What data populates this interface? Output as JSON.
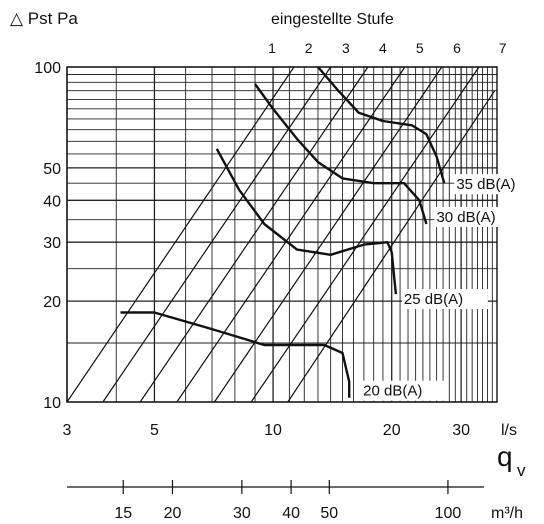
{
  "chart_data": {
    "type": "line",
    "title_y": "△ Pst  Pa",
    "title_top": "eingestellte Stufe",
    "x_unit_ls": "l/s",
    "x_symbol": "q",
    "x_symbol_sub": "v",
    "x_unit_m3h": "m³/h",
    "xscale": "log",
    "yscale": "log",
    "xlim_ls": [
      3,
      37
    ],
    "ylim": [
      10,
      100
    ],
    "x_ticks_ls": [
      {
        "v": 3,
        "label": "3"
      },
      {
        "v": 5,
        "label": "5"
      },
      {
        "v": 10,
        "label": "10"
      },
      {
        "v": 20,
        "label": "20"
      },
      {
        "v": 30,
        "label": "30"
      }
    ],
    "x_ticks_m3h": [
      {
        "v": 15,
        "label": "15"
      },
      {
        "v": 20,
        "label": "20"
      },
      {
        "v": 30,
        "label": "30"
      },
      {
        "v": 40,
        "label": "40"
      },
      {
        "v": 50,
        "label": "50"
      },
      {
        "v": 100,
        "label": "100"
      }
    ],
    "y_ticks": [
      {
        "v": 10,
        "label": "10"
      },
      {
        "v": 20,
        "label": "20"
      },
      {
        "v": 30,
        "label": "30"
      },
      {
        "v": 40,
        "label": "40"
      },
      {
        "v": 50,
        "label": "50"
      },
      {
        "v": 100,
        "label": "100"
      }
    ],
    "grid": true,
    "stufen": [
      {
        "label": "1",
        "points": [
          [
            3.0,
            10
          ],
          [
            11.3,
            100
          ]
        ]
      },
      {
        "label": "2",
        "points": [
          [
            3.7,
            10
          ],
          [
            14.0,
            100
          ]
        ]
      },
      {
        "label": "3",
        "points": [
          [
            4.6,
            10
          ],
          [
            17.4,
            100
          ]
        ]
      },
      {
        "label": "4",
        "points": [
          [
            5.7,
            10
          ],
          [
            21.6,
            100
          ]
        ]
      },
      {
        "label": "5",
        "points": [
          [
            7.1,
            10
          ],
          [
            26.8,
            100
          ]
        ]
      },
      {
        "label": "6",
        "points": [
          [
            8.8,
            10
          ],
          [
            33.3,
            100
          ]
        ]
      },
      {
        "label": "7",
        "points": [
          [
            10.9,
            10
          ],
          [
            36.5,
            85
          ]
        ]
      }
    ],
    "series": [
      {
        "name": "35 dB(A)",
        "points": [
          [
            13.0,
            100
          ],
          [
            14.5,
            86
          ],
          [
            16.5,
            73
          ],
          [
            19.0,
            69
          ],
          [
            22.5,
            67
          ],
          [
            24.5,
            63
          ],
          [
            26.0,
            54
          ],
          [
            27.2,
            45
          ]
        ]
      },
      {
        "name": "30 dB(A)",
        "points": [
          [
            9.0,
            89
          ],
          [
            10.0,
            75
          ],
          [
            11.5,
            61
          ],
          [
            13.0,
            52
          ],
          [
            15.0,
            46.5
          ],
          [
            18.0,
            45
          ],
          [
            21.5,
            45
          ],
          [
            23.5,
            40
          ],
          [
            24.5,
            34
          ]
        ]
      },
      {
        "name": "25 dB(A)",
        "points": [
          [
            7.2,
            57
          ],
          [
            8.2,
            43
          ],
          [
            9.5,
            34
          ],
          [
            11.5,
            28.5
          ],
          [
            14.0,
            27.5
          ],
          [
            17.0,
            29.5
          ],
          [
            19.5,
            30
          ],
          [
            20.0,
            28
          ],
          [
            20.5,
            21
          ]
        ]
      },
      {
        "name": "20 dB(A)",
        "points": [
          [
            4.1,
            18.5
          ],
          [
            5.0,
            18.5
          ],
          [
            7.0,
            16.5
          ],
          [
            9.5,
            14.8
          ],
          [
            11.5,
            14.8
          ],
          [
            13.5,
            14.8
          ],
          [
            15.0,
            14
          ],
          [
            15.6,
            11.5
          ],
          [
            15.6,
            10.3
          ]
        ]
      }
    ]
  }
}
